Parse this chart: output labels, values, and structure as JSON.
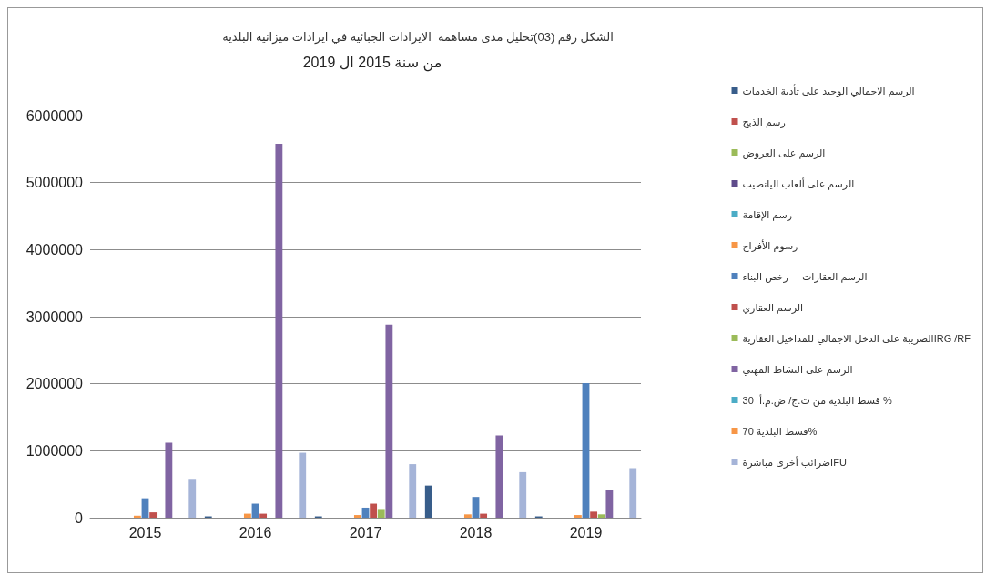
{
  "chart_data": {
    "type": "bar",
    "title": "الشكل رقم (03)تحليل مدى مساهمة  الايرادات الجبائية في ايرادات ميزانية البلدية",
    "subtitle": "من سنة 2015 ال 2019",
    "categories": [
      "2015",
      "2016",
      "2017",
      "2018",
      "2019"
    ],
    "series": [
      {
        "name": "الرسم الاجمالي الوحيد على تأدية الخدمات",
        "color": "#385d8a",
        "values": [
          0,
          20000,
          20000,
          480000,
          20000
        ]
      },
      {
        "name": "رسم الذبح",
        "color": "#c0504d",
        "values": [
          0,
          0,
          0,
          0,
          0
        ]
      },
      {
        "name": "الرسم على العروض",
        "color": "#9bbb59",
        "values": [
          0,
          0,
          0,
          0,
          0
        ]
      },
      {
        "name": "الرسم على ألعاب اليانصيب",
        "color": "#5f4b8b",
        "values": [
          0,
          0,
          0,
          0,
          0
        ]
      },
      {
        "name": "رسم الإقامة",
        "color": "#4bacc6",
        "values": [
          0,
          0,
          0,
          0,
          0
        ]
      },
      {
        "name": "رسوم الأفراح",
        "color": "#f79646",
        "values": [
          30000,
          60000,
          40000,
          50000,
          40000
        ]
      },
      {
        "name": "الرسم العقارات–   رخص البناء",
        "color": "#4f81bd",
        "values": [
          290000,
          210000,
          150000,
          310000,
          2010000
        ]
      },
      {
        "name": "الرسم العقاري",
        "color": "#c0504d",
        "values": [
          80000,
          60000,
          210000,
          60000,
          90000
        ]
      },
      {
        "name": "الضريبة على الدخل الاجمالي للمداخيل العقاريةIRG /RF",
        "color": "#9bbb59",
        "values": [
          0,
          0,
          130000,
          0,
          50000
        ]
      },
      {
        "name": "الرسم على النشاط المهني",
        "color": "#8064a2",
        "values": [
          1120000,
          5580000,
          2880000,
          1230000,
          410000
        ]
      },
      {
        "name": "قسط البلدية من ت.ج/ ض.م.أ  30 %",
        "color": "#4bacc6",
        "values": [
          0,
          0,
          0,
          0,
          0
        ]
      },
      {
        "name": "قسط البلدية 70%",
        "color": "#f79646",
        "values": [
          0,
          0,
          0,
          0,
          0
        ]
      },
      {
        "name": "ضرائب أخرى مباشرةIFU",
        "color": "#a5b4d8",
        "values": [
          580000,
          970000,
          800000,
          680000,
          740000
        ]
      }
    ],
    "ylim": [
      0,
      6000000
    ],
    "yticks": [
      0,
      1000000,
      2000000,
      3000000,
      4000000,
      5000000,
      6000000
    ],
    "grid": "y",
    "legend": "right"
  }
}
